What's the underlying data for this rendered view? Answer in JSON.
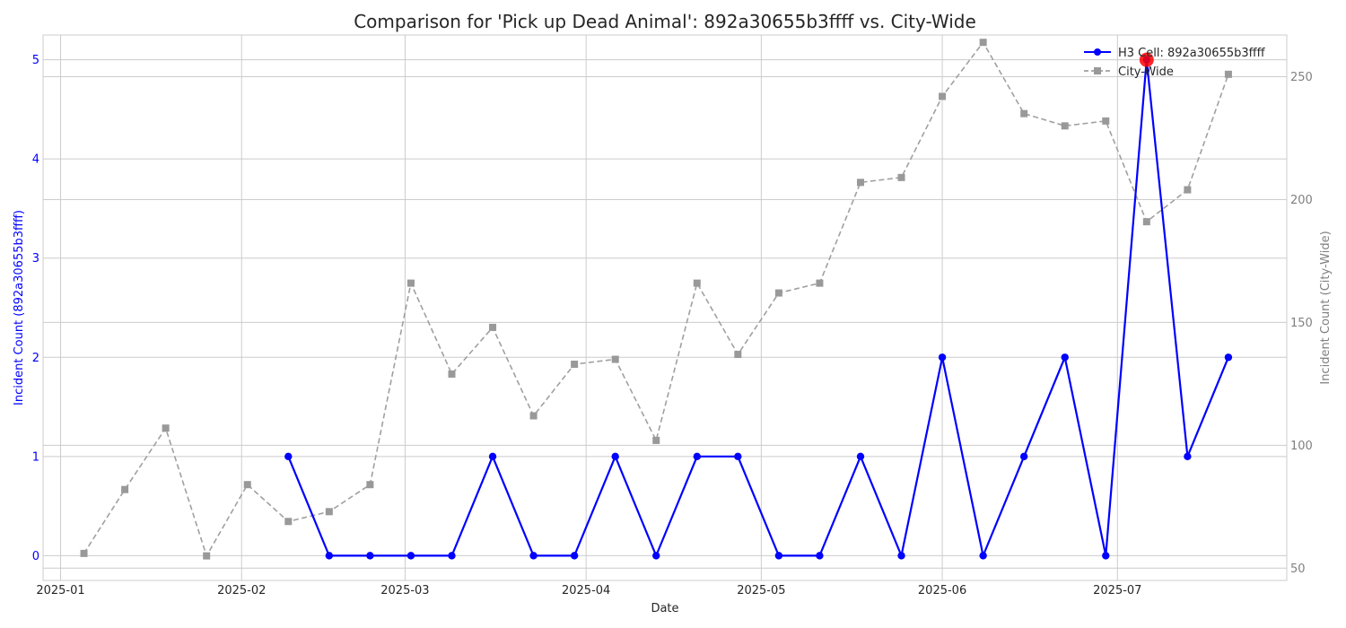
{
  "chart_data": {
    "type": "line",
    "title": "Comparison for 'Pick up Dead Animal': 892a30655b3ffff vs. City-Wide",
    "xlabel": "Date",
    "ylabel_left": "Incident Count (892a30655b3ffff)",
    "ylabel_right": "Incident Count (City-Wide)",
    "x_ticks": [
      "2025-01",
      "2025-02",
      "2025-03",
      "2025-04",
      "2025-05",
      "2025-06",
      "2025-07"
    ],
    "y_left_ticks": [
      "0",
      "1",
      "2",
      "3",
      "4",
      "5"
    ],
    "y_right_ticks": [
      "50",
      "100",
      "150",
      "200",
      "250"
    ],
    "y_left_lim": [
      -0.25,
      5.25
    ],
    "y_right_lim": [
      45,
      267
    ],
    "x_lim": [
      "2024-12-29",
      "2025-07-30"
    ],
    "grid": true,
    "legend": "top-right",
    "series": [
      {
        "name": "H3 Cell: 892a30655b3ffff",
        "axis": "left",
        "color": "#0000ff",
        "style": "solid",
        "marker": "circle",
        "x": [
          "2025-02-09",
          "2025-02-16",
          "2025-02-23",
          "2025-03-02",
          "2025-03-09",
          "2025-03-16",
          "2025-03-23",
          "2025-03-30",
          "2025-04-06",
          "2025-04-13",
          "2025-04-20",
          "2025-04-27",
          "2025-05-04",
          "2025-05-11",
          "2025-05-18",
          "2025-05-25",
          "2025-06-01",
          "2025-06-08",
          "2025-06-15",
          "2025-06-22",
          "2025-06-29",
          "2025-07-06",
          "2025-07-13",
          "2025-07-20"
        ],
        "y": [
          1,
          0,
          0,
          0,
          0,
          1,
          0,
          0,
          1,
          0,
          1,
          1,
          0,
          0,
          1,
          0,
          2,
          0,
          1,
          2,
          0,
          5,
          1,
          2
        ]
      },
      {
        "name": "City-Wide",
        "axis": "right",
        "color": "#a0a0a0",
        "style": "dashed",
        "marker": "square",
        "x": [
          "2025-01-05",
          "2025-01-12",
          "2025-01-19",
          "2025-01-26",
          "2025-02-02",
          "2025-02-09",
          "2025-02-16",
          "2025-02-23",
          "2025-03-02",
          "2025-03-09",
          "2025-03-16",
          "2025-03-23",
          "2025-03-30",
          "2025-04-06",
          "2025-04-13",
          "2025-04-20",
          "2025-04-27",
          "2025-05-04",
          "2025-05-11",
          "2025-05-18",
          "2025-05-25",
          "2025-06-01",
          "2025-06-08",
          "2025-06-15",
          "2025-06-22",
          "2025-06-29",
          "2025-07-06",
          "2025-07-13",
          "2025-07-20"
        ],
        "y": [
          56,
          82,
          107,
          55,
          84,
          69,
          73,
          84,
          166,
          129,
          148,
          112,
          133,
          135,
          102,
          166,
          137,
          162,
          166,
          207,
          209,
          242,
          264,
          235,
          230,
          232,
          191,
          204,
          251
        ]
      }
    ],
    "highlight": {
      "series": "H3 Cell: 892a30655b3ffff",
      "x": "2025-07-06",
      "y": 5,
      "color": "#ff0000"
    }
  }
}
